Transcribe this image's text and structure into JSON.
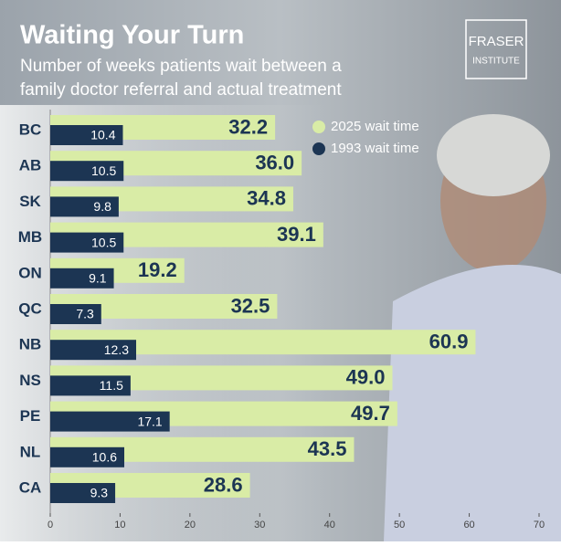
{
  "chart_data": {
    "type": "bar",
    "orientation": "horizontal",
    "title": "Waiting Your Turn",
    "subtitle": [
      "Number of weeks patients wait between a",
      "family doctor referral and actual treatment"
    ],
    "categories": [
      "BC",
      "AB",
      "SK",
      "MB",
      "ON",
      "QC",
      "NB",
      "NS",
      "PE",
      "NL",
      "CA"
    ],
    "series": [
      {
        "name": "2025 wait time",
        "color": "#d9eca6",
        "values": [
          32.2,
          36.0,
          34.8,
          39.1,
          19.2,
          32.5,
          60.9,
          49.0,
          49.7,
          43.5,
          28.6
        ],
        "value_labels": [
          "32.2",
          "36.0",
          "34.8",
          "39.1",
          "19.2",
          "32.5",
          "60.9",
          "49.0",
          "49.7",
          "43.5",
          "28.6"
        ]
      },
      {
        "name": "1993 wait time",
        "color": "#1c3553",
        "values": [
          10.4,
          10.5,
          9.8,
          10.5,
          9.1,
          7.3,
          12.3,
          11.5,
          17.1,
          10.6,
          9.3
        ],
        "value_labels": [
          "10.4",
          "10.5",
          "9.8",
          "10.5",
          "9.1",
          "7.3",
          "12.3",
          "11.5",
          "17.1",
          "10.6",
          "9.3"
        ]
      }
    ],
    "xlim": [
      0,
      70
    ],
    "xticks": [
      0,
      10,
      20,
      30,
      40,
      50,
      60,
      70
    ],
    "grid": false,
    "legend": "top-right"
  },
  "logo": {
    "line1": "FRASER",
    "line2": "INSTITUTE"
  }
}
